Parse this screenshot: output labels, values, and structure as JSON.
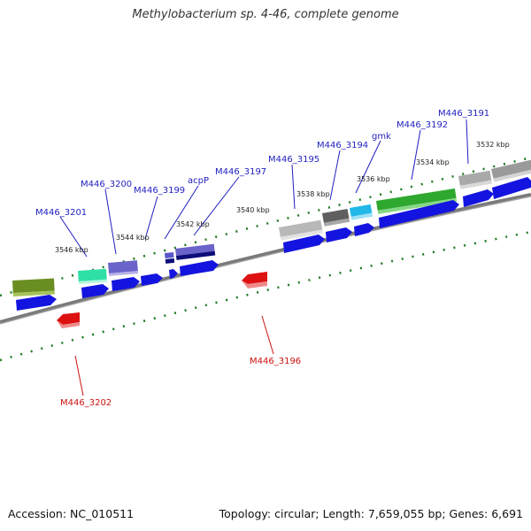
{
  "title": "Methylobacterium sp. 4-46, complete genome",
  "footer": {
    "accession": "Accession: NC_010511",
    "summary": "Topology: circular; Length: 7,659,055 bp; Genes: 6,691"
  },
  "colors": {
    "label_blue": "#1f1fbf",
    "label_red": "#cc1111",
    "backbone": "#7a7a7a",
    "tick_green": "#1f7a1f",
    "cds_blue": "#1414e0",
    "cds_red": "#dd1111"
  },
  "ruler_labels": [
    "3532 kbp",
    "3534 kbp",
    "3536 kbp",
    "3538 kbp",
    "3540 kbp",
    "3542 kbp",
    "3544 kbp",
    "3546 kbp"
  ],
  "gene_labels": [
    "M446_3191",
    "M446_3192",
    "gmk",
    "M446_3194",
    "M446_3195",
    "M446_3197",
    "acpP",
    "M446_3199",
    "M446_3200",
    "M446_3201",
    "M446_3196",
    "M446_3202"
  ]
}
